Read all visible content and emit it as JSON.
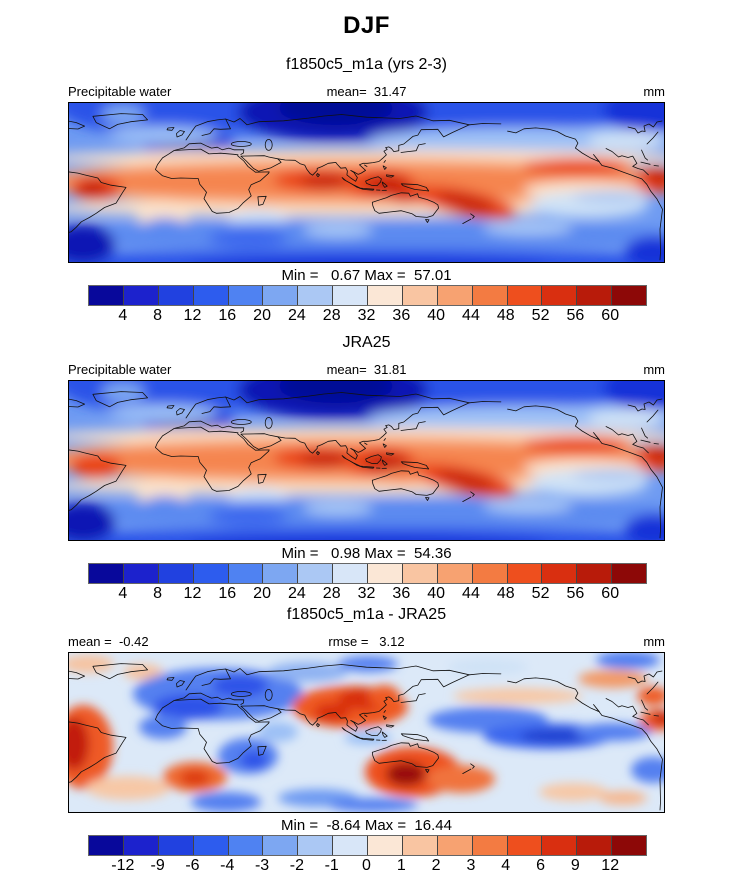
{
  "title": "DJF",
  "palette": [
    "#08089b",
    "#1c22cd",
    "#2141e0",
    "#2d5cee",
    "#4f82f2",
    "#7da7f2",
    "#abc8f4",
    "#d8e6f8",
    "#fbe7d6",
    "#f9c5a2",
    "#f7a271",
    "#f37b42",
    "#ee4f1e",
    "#d92f10",
    "#b81b0a",
    "#8d0807"
  ],
  "panels": [
    {
      "subtitle": "f1850c5_m1a (yrs 2-3)",
      "header": {
        "left": "Precipitable water",
        "center": "mean=  31.47",
        "right": "mm"
      },
      "stats_line": "Min =   0.67 Max =  57.01",
      "ticks": [
        "4",
        "8",
        "12",
        "16",
        "20",
        "24",
        "28",
        "32",
        "36",
        "40",
        "44",
        "48",
        "52",
        "56",
        "60"
      ]
    },
    {
      "subtitle": "JRA25",
      "header": {
        "left": "Precipitable water",
        "center": "mean=  31.81",
        "right": "mm"
      },
      "stats_line": "Min =   0.98 Max =  54.36",
      "ticks": [
        "4",
        "8",
        "12",
        "16",
        "20",
        "24",
        "28",
        "32",
        "36",
        "40",
        "44",
        "48",
        "52",
        "56",
        "60"
      ]
    },
    {
      "subtitle": "f1850c5_m1a - JRA25",
      "header": {
        "left": "mean =  -0.42",
        "center": "rmse =   3.12",
        "right": "mm"
      },
      "stats_line": "Min =  -8.64 Max =  16.44",
      "ticks": [
        "-12",
        "-9",
        "-6",
        "-4",
        "-3",
        "-2",
        "-1",
        "0",
        "1",
        "2",
        "3",
        "4",
        "6",
        "9",
        "12"
      ]
    }
  ],
  "chart_data": [
    {
      "type": "heatmap",
      "variant": "filled-contour global map, cylindrical equidistant, lat -90..90",
      "season": "DJF",
      "title": "f1850c5_m1a (yrs 2-3)",
      "variable": "Precipitable water",
      "units": "mm",
      "stats": {
        "mean": 31.47,
        "min": 0.67,
        "max": 57.01
      },
      "colorbar_tick_values": [
        4,
        8,
        12,
        16,
        20,
        24,
        28,
        32,
        36,
        40,
        44,
        48,
        52,
        56,
        60
      ],
      "colorbar_colors": [
        "#08089b",
        "#1c22cd",
        "#2141e0",
        "#2d5cee",
        "#4f82f2",
        "#7da7f2",
        "#abc8f4",
        "#d8e6f8",
        "#fbe7d6",
        "#f9c5a2",
        "#f7a271",
        "#f37b42",
        "#ee4f1e",
        "#d92f10",
        "#b81b0a",
        "#8d0807"
      ],
      "pattern": "High values 40-57 mm along the tropical band (Amazon, equatorial Indian Ocean, Maritime Continent, SPCZ, ITCZ); low values <8 mm over Siberia/Tibet, Sahara-Arabia subtropics, high latitudes and polar oceans."
    },
    {
      "type": "heatmap",
      "variant": "filled-contour global map, cylindrical equidistant, lat -90..90",
      "season": "DJF",
      "title": "JRA25",
      "variable": "Precipitable water",
      "units": "mm",
      "stats": {
        "mean": 31.81,
        "min": 0.98,
        "max": 54.36
      },
      "colorbar_tick_values": [
        4,
        8,
        12,
        16,
        20,
        24,
        28,
        32,
        36,
        40,
        44,
        48,
        52,
        56,
        60
      ],
      "colorbar_colors": [
        "#08089b",
        "#1c22cd",
        "#2141e0",
        "#2d5cee",
        "#4f82f2",
        "#7da7f2",
        "#abc8f4",
        "#d8e6f8",
        "#fbe7d6",
        "#f9c5a2",
        "#f7a271",
        "#f37b42",
        "#ee4f1e",
        "#d92f10",
        "#b81b0a",
        "#8d0807"
      ],
      "pattern": "Reanalysis field nearly identical to model: moist tropical band, dry high latitudes, dry Sahara and Tibetan Plateau."
    },
    {
      "type": "heatmap",
      "variant": "filled-contour global difference map (model minus reanalysis)",
      "season": "DJF",
      "title": "f1850c5_m1a - JRA25",
      "variable": "Precipitable water difference",
      "units": "mm",
      "stats": {
        "mean": -0.42,
        "rmse": 3.12,
        "min": -8.64,
        "max": 16.44
      },
      "colorbar_tick_values": [
        -12,
        -9,
        -6,
        -4,
        -3,
        -2,
        -1,
        0,
        1,
        2,
        3,
        4,
        6,
        9,
        12
      ],
      "colorbar_colors": [
        "#08089b",
        "#1c22cd",
        "#2141e0",
        "#2d5cee",
        "#4f82f2",
        "#7da7f2",
        "#abc8f4",
        "#d8e6f8",
        "#fbe7d6",
        "#f9c5a2",
        "#f7a271",
        "#f37b42",
        "#ee4f1e",
        "#d92f10",
        "#b81b0a",
        "#8d0807"
      ],
      "pattern": "Wet bias (red, up to +16 mm) over eastern tropical Pacific/Peru coast, southern Africa, India-Southeast Asia and especially Australia; dry bias (blue) over North Africa/Atlantic, south Indian Ocean and central equatorial Pacific."
    }
  ]
}
